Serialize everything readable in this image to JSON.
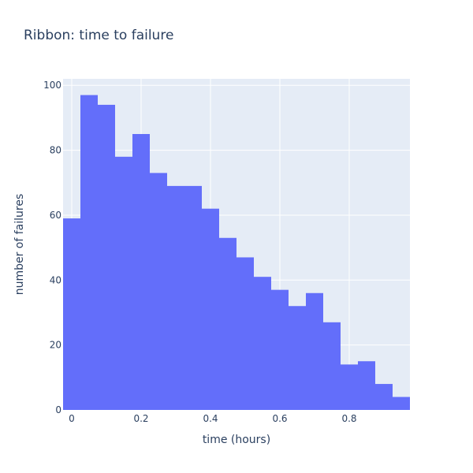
{
  "chart_data": {
    "type": "bar",
    "title": "Ribbon: time to failure",
    "xlabel": "time (hours)",
    "ylabel": "number of failures",
    "bin_width": 0.05,
    "x": [
      0.0,
      0.05,
      0.1,
      0.15,
      0.2,
      0.25,
      0.3,
      0.35,
      0.4,
      0.45,
      0.5,
      0.55,
      0.6,
      0.65,
      0.7,
      0.75,
      0.8,
      0.85,
      0.9,
      0.95
    ],
    "values": [
      59,
      97,
      94,
      78,
      85,
      73,
      69,
      69,
      62,
      53,
      47,
      41,
      37,
      32,
      36,
      27,
      14,
      15,
      8,
      4
    ],
    "xlim": [
      -0.025,
      0.975
    ],
    "ylim": [
      0,
      102
    ],
    "xticks": [
      0,
      0.2,
      0.4,
      0.6,
      0.8
    ],
    "xtick_labels": [
      "0",
      "0.2",
      "0.4",
      "0.6",
      "0.8"
    ],
    "yticks": [
      0,
      20,
      40,
      60,
      80,
      100
    ],
    "ytick_labels": [
      "0",
      "20",
      "40",
      "60",
      "80",
      "100"
    ],
    "grid": true,
    "colors": {
      "bar": "#636efa",
      "plot_background": "#e5ecf6",
      "grid": "#ffffff",
      "text": "#2a3f5f"
    }
  }
}
